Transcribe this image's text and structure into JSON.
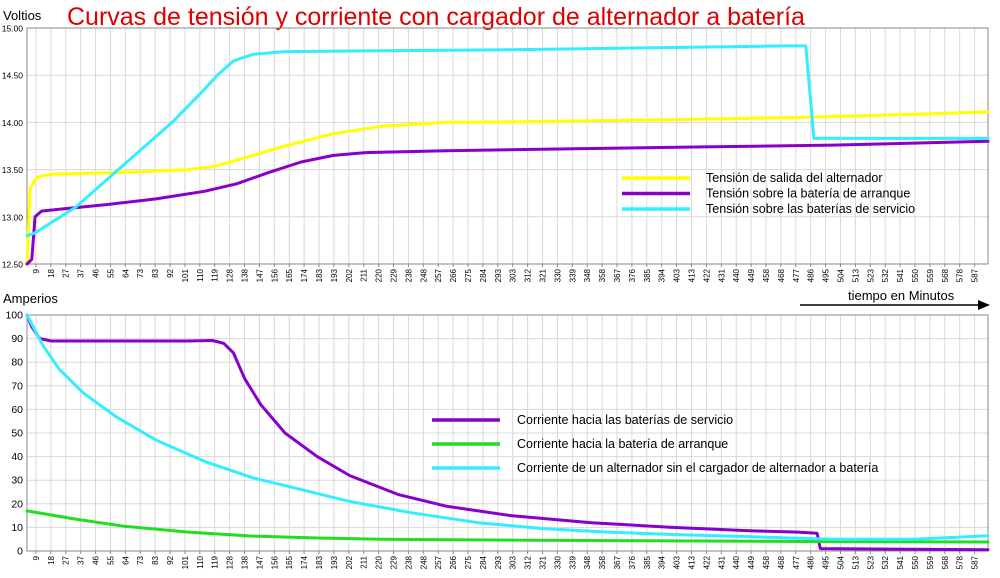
{
  "chart_data": [
    {
      "type": "line",
      "title": "Curvas de tensión y corriente con cargador de alternador a batería",
      "ylabel": "Voltios",
      "ylim": [
        12.5,
        15.0
      ],
      "yticks": [
        "12.50",
        "13.00",
        "13.50",
        "14.00",
        "14.50",
        "15.00"
      ],
      "xticks": [
        "9",
        "18",
        "27",
        "37",
        "46",
        "55",
        "64",
        "73",
        "83",
        "92",
        "101",
        "110",
        "119",
        "128",
        "138",
        "147",
        "156",
        "165",
        "174",
        "183",
        "193",
        "202",
        "211",
        "220",
        "229",
        "238",
        "248",
        "257",
        "266",
        "275",
        "284",
        "293",
        "303",
        "312",
        "321",
        "330",
        "339",
        "348",
        "358",
        "367",
        "376",
        "385",
        "394",
        "403",
        "413",
        "422",
        "431",
        "440",
        "449",
        "458",
        "468",
        "477",
        "486",
        "495",
        "504",
        "513",
        "523",
        "532",
        "541",
        "550",
        "559",
        "568",
        "578",
        "587"
      ],
      "xlim": [
        0,
        596
      ],
      "grid": true,
      "legend_position": "center-right",
      "series": [
        {
          "name": "Tensión de salida del alternador",
          "color": "#ffff00",
          "points": [
            [
              0,
              12.5
            ],
            [
              2,
              13.3
            ],
            [
              6,
              13.42
            ],
            [
              15,
              13.45
            ],
            [
              60,
              13.47
            ],
            [
              100,
              13.5
            ],
            [
              115,
              13.53
            ],
            [
              130,
              13.6
            ],
            [
              160,
              13.75
            ],
            [
              190,
              13.88
            ],
            [
              220,
              13.96
            ],
            [
              260,
              14.0
            ],
            [
              320,
              14.01
            ],
            [
              400,
              14.03
            ],
            [
              470,
              14.05
            ],
            [
              540,
              14.08
            ],
            [
              596,
              14.11
            ]
          ]
        },
        {
          "name": "Tensión sobre la batería de arranque",
          "color": "#8800cc",
          "points": [
            [
              0,
              12.5
            ],
            [
              3,
              12.55
            ],
            [
              5,
              13.0
            ],
            [
              9,
              13.06
            ],
            [
              20,
              13.08
            ],
            [
              50,
              13.13
            ],
            [
              80,
              13.19
            ],
            [
              110,
              13.27
            ],
            [
              130,
              13.35
            ],
            [
              150,
              13.47
            ],
            [
              170,
              13.58
            ],
            [
              190,
              13.65
            ],
            [
              210,
              13.68
            ],
            [
              260,
              13.7
            ],
            [
              340,
              13.72
            ],
            [
              420,
              13.74
            ],
            [
              500,
              13.76
            ],
            [
              596,
              13.8
            ]
          ]
        },
        {
          "name": "Tensión sobre las baterías de servicio",
          "color": "#33eeff",
          "points": [
            [
              0,
              12.8
            ],
            [
              5,
              12.83
            ],
            [
              30,
              13.1
            ],
            [
              60,
              13.55
            ],
            [
              90,
              14.0
            ],
            [
              110,
              14.35
            ],
            [
              118,
              14.5
            ],
            [
              128,
              14.65
            ],
            [
              140,
              14.72
            ],
            [
              160,
              14.75
            ],
            [
              300,
              14.77
            ],
            [
              470,
              14.81
            ],
            [
              483,
              14.81
            ],
            [
              488,
              13.83
            ],
            [
              596,
              13.83
            ]
          ]
        }
      ]
    },
    {
      "type": "line",
      "ylabel": "Amperios",
      "xlabel": "tiempo en Minutos",
      "ylim": [
        0,
        100
      ],
      "yticks": [
        "0",
        "10",
        "20",
        "30",
        "40",
        "50",
        "60",
        "70",
        "80",
        "90",
        "100"
      ],
      "xticks": [
        "9",
        "18",
        "27",
        "37",
        "46",
        "55",
        "64",
        "73",
        "83",
        "92",
        "101",
        "110",
        "119",
        "128",
        "138",
        "147",
        "156",
        "165",
        "174",
        "183",
        "193",
        "202",
        "211",
        "220",
        "229",
        "238",
        "248",
        "257",
        "266",
        "275",
        "284",
        "293",
        "303",
        "312",
        "321",
        "330",
        "339",
        "348",
        "358",
        "367",
        "376",
        "385",
        "394",
        "403",
        "413",
        "422",
        "431",
        "440",
        "449",
        "458",
        "468",
        "477",
        "486",
        "495",
        "504",
        "513",
        "523",
        "532",
        "541",
        "550",
        "559",
        "568",
        "578",
        "587"
      ],
      "xlim": [
        0,
        596
      ],
      "grid": true,
      "legend_position": "center-right",
      "series": [
        {
          "name": "Corriente hacia las baterías de servicio",
          "color": "#8800cc",
          "points": [
            [
              0,
              100
            ],
            [
              3,
              95
            ],
            [
              8,
              90
            ],
            [
              15,
              89
            ],
            [
              50,
              89
            ],
            [
              100,
              89
            ],
            [
              115,
              89.2
            ],
            [
              122,
              88
            ],
            [
              128,
              84
            ],
            [
              135,
              73
            ],
            [
              145,
              62
            ],
            [
              160,
              50
            ],
            [
              180,
              40
            ],
            [
              200,
              32
            ],
            [
              230,
              24
            ],
            [
              260,
              19
            ],
            [
              300,
              15
            ],
            [
              350,
              12
            ],
            [
              400,
              10
            ],
            [
              450,
              8.5
            ],
            [
              478,
              8
            ],
            [
              490,
              7.5
            ],
            [
              492,
              1
            ],
            [
              596,
              0.5
            ]
          ]
        },
        {
          "name": "Corriente hacia la batería de arranque",
          "color": "#22dd22",
          "points": [
            [
              0,
              17
            ],
            [
              30,
              13.5
            ],
            [
              60,
              10.5
            ],
            [
              100,
              8
            ],
            [
              140,
              6.3
            ],
            [
              180,
              5.5
            ],
            [
              220,
              5
            ],
            [
              300,
              4.6
            ],
            [
              400,
              4.3
            ],
            [
              500,
              4
            ],
            [
              596,
              3.8
            ]
          ]
        },
        {
          "name": "Corriente de un alternador sin el cargador de alternador a batería",
          "color": "#33eeff",
          "points": [
            [
              0,
              100
            ],
            [
              10,
              87
            ],
            [
              20,
              77
            ],
            [
              35,
              67
            ],
            [
              55,
              57
            ],
            [
              80,
              47
            ],
            [
              110,
              38
            ],
            [
              140,
              31
            ],
            [
              170,
              26
            ],
            [
              200,
              21
            ],
            [
              240,
              16
            ],
            [
              280,
              12
            ],
            [
              320,
              9.5
            ],
            [
              360,
              8
            ],
            [
              400,
              7
            ],
            [
              450,
              6
            ],
            [
              500,
              5
            ],
            [
              550,
              5
            ],
            [
              596,
              6.5
            ]
          ]
        }
      ]
    }
  ]
}
